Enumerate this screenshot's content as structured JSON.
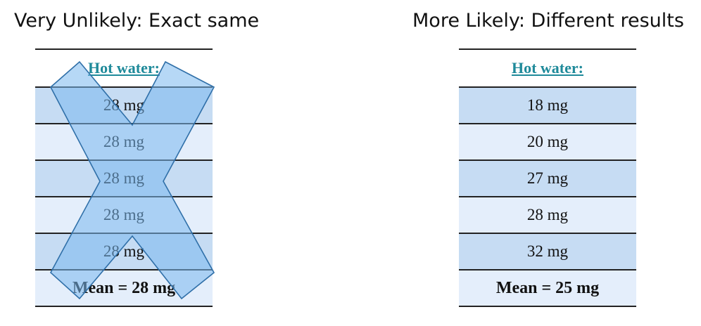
{
  "left_panel": {
    "title": "Very Unlikely: Exact same",
    "header": "Hot water:",
    "rows": [
      "28 mg",
      "28 mg",
      "28 mg",
      "28 mg",
      "28 mg"
    ],
    "mean": "Mean = 28 mg"
  },
  "right_panel": {
    "title": "More Likely: Different results",
    "header": "Hot water:",
    "rows": [
      "18 mg",
      "20 mg",
      "27 mg",
      "28 mg",
      "32 mg"
    ],
    "mean": "Mean = 25 mg"
  },
  "colors": {
    "header_text": "#1f8a9a",
    "row_dark": "#c6dcf3",
    "row_light": "#e4eefb",
    "cross_fill": "#7ab8ef",
    "cross_stroke": "#2f6fa8"
  },
  "icons": {
    "cross": "cross-out-x-icon"
  }
}
